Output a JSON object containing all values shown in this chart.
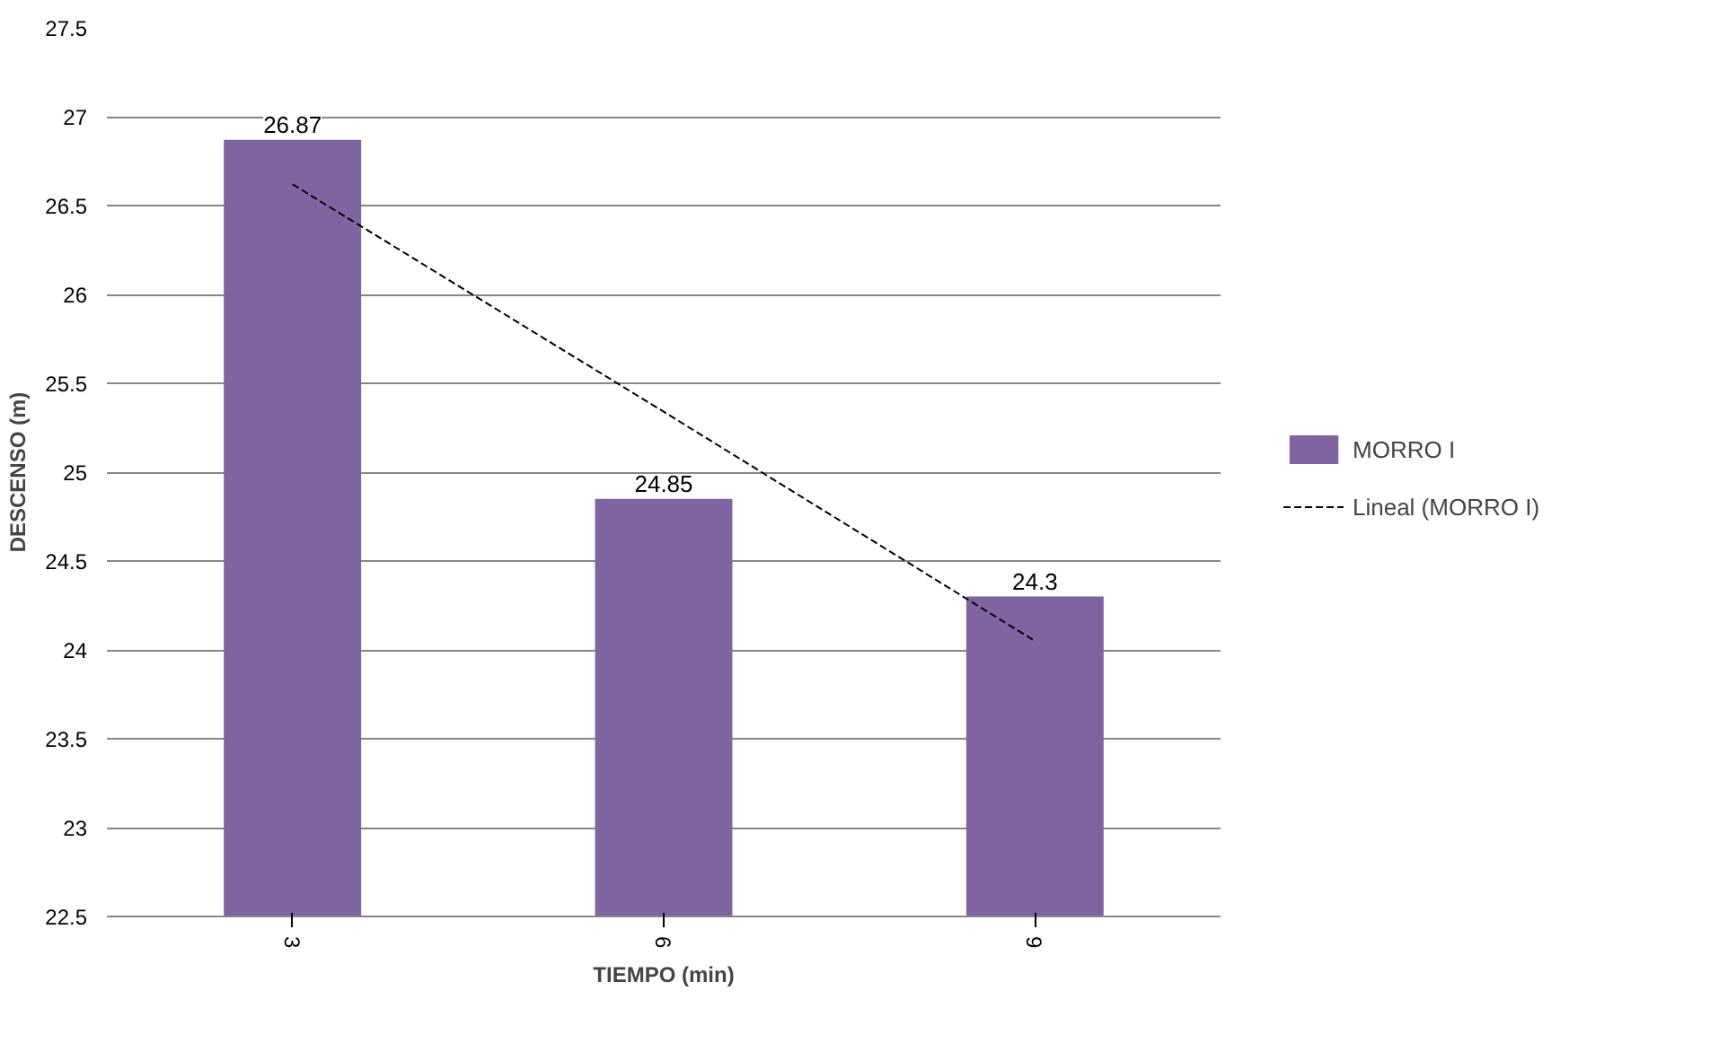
{
  "chart_data": {
    "type": "bar",
    "xlabel": "TIEMPO (min)",
    "ylabel": "DESCENSO (m)",
    "categories": [
      "3",
      "6",
      "9"
    ],
    "series": [
      {
        "name": "MORRO I",
        "color": "#8064a2",
        "values": [
          26.87,
          24.85,
          24.3
        ],
        "value_labels": [
          "26.87",
          "24.85",
          "24.3"
        ]
      },
      {
        "name": "Lineal (MORRO I)",
        "type": "line",
        "line_style": "dashed",
        "color": "#000000",
        "x": [
          "3",
          "6",
          "9"
        ],
        "values": [
          26.62,
          25.34,
          24.05
        ]
      }
    ],
    "ylim": [
      22.5,
      27.5
    ],
    "yticks": [
      22.5,
      23,
      23.5,
      24,
      24.5,
      25,
      25.5,
      26,
      26.5,
      27,
      27.5
    ],
    "grid": "y",
    "legend": "right"
  }
}
